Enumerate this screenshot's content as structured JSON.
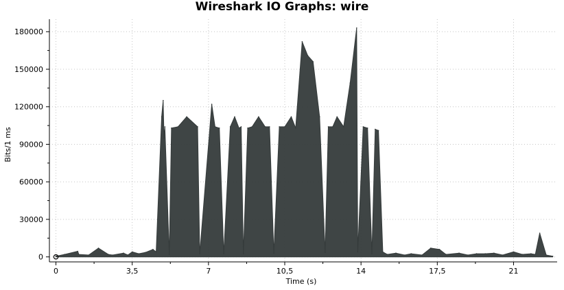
{
  "chart_data": {
    "type": "area",
    "title": "Wireshark IO Graphs: wire",
    "xlabel": "Time (s)",
    "ylabel": "Bits/1 ms",
    "xlim": [
      -0.3,
      23.0
    ],
    "ylim": [
      -4000,
      190000
    ],
    "x_ticks": [
      0,
      3.5,
      7,
      10.5,
      14,
      17.5,
      21
    ],
    "x_tick_labels": [
      "0",
      "3,5",
      "7",
      "10,5",
      "14",
      "17,5",
      "21"
    ],
    "y_ticks": [
      0,
      30000,
      60000,
      90000,
      120000,
      150000,
      180000
    ],
    "y_tick_labels": [
      "0",
      "30000",
      "60000",
      "90000",
      "120000",
      "150000",
      "180000"
    ],
    "grid": true,
    "series_color": "#353b3b",
    "series": [
      {
        "x": [
          0,
          0.4,
          1.0,
          1.05,
          1.5,
          1.95,
          2.4,
          2.6,
          3.1,
          3.3,
          3.5,
          3.8,
          4.1,
          4.45,
          4.6,
          4.85,
          4.92,
          4.96,
          5.0,
          5.2,
          5.3,
          5.6,
          6.0,
          6.5,
          6.6,
          7.15,
          7.3,
          7.5,
          7.7,
          8.0,
          8.2,
          8.4,
          8.5,
          8.6,
          8.8,
          9.0,
          9.3,
          9.6,
          9.8,
          10.0,
          10.25,
          10.5,
          10.8,
          11.0,
          11.3,
          11.55,
          11.8,
          12.1,
          12.35,
          12.5,
          12.7,
          12.9,
          13.2,
          13.5,
          13.8,
          13.85,
          14.1,
          14.3,
          14.5,
          14.65,
          14.8,
          15.0,
          15.2,
          15.6,
          16.0,
          16.3,
          16.8,
          17.2,
          17.6,
          17.9,
          18.5,
          18.9,
          19.3,
          19.7,
          20.1,
          20.5,
          21.0,
          21.4,
          21.8,
          22.0,
          22.2,
          22.5,
          22.8
        ],
        "y": [
          500,
          2000,
          4500,
          2000,
          1500,
          7000,
          2000,
          1500,
          3000,
          1500,
          4000,
          2500,
          3500,
          6000,
          4000,
          112000,
          125000,
          95000,
          104000,
          2000,
          103000,
          104000,
          112000,
          104000,
          2500,
          122000,
          104000,
          103000,
          2500,
          104000,
          112000,
          103000,
          104000,
          2500,
          103000,
          104000,
          112000,
          104000,
          104000,
          3000,
          104000,
          104000,
          112000,
          103000,
          172000,
          161000,
          156000,
          112000,
          3500,
          104000,
          104000,
          112000,
          104000,
          139000,
          183000,
          4000,
          104000,
          103000,
          2500,
          102000,
          101000,
          4000,
          2000,
          3000,
          1500,
          2500,
          1500,
          7000,
          6000,
          2000,
          3000,
          1500,
          2500,
          2500,
          3000,
          1500,
          4000,
          2000,
          2500,
          2000,
          19000,
          1500,
          500
        ]
      }
    ]
  },
  "origin_marker": "circle"
}
